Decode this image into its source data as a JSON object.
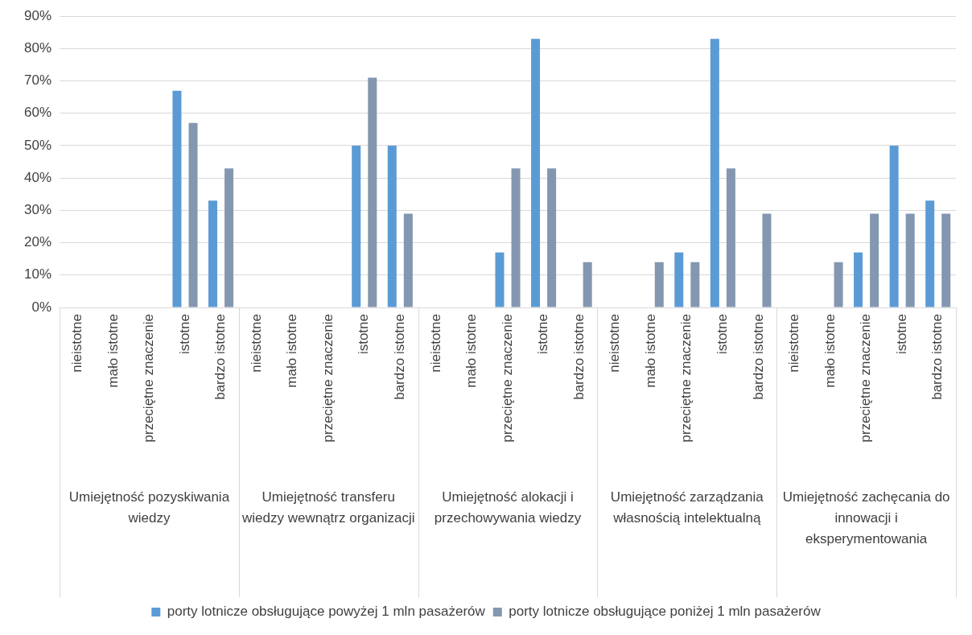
{
  "chart_data": {
    "type": "bar",
    "categories": [
      "nieistotne",
      "mało istotne",
      "przeciętne znaczenie",
      "istotne",
      "bardzo istotne",
      "nieistotne",
      "mało istotne",
      "przeciętne znaczenie",
      "istotne",
      "bardzo istotne",
      "nieistotne",
      "mało istotne",
      "przeciętne znaczenie",
      "istotne",
      "bardzo istotne",
      "nieistotne",
      "mało istotne",
      "przeciętne znaczenie",
      "istotne",
      "bardzo istotne",
      "nieistotne",
      "mało istotne",
      "przeciętne znaczenie",
      "istotne",
      "bardzo istotne"
    ],
    "annotations": [
      "Umiejętność pozyskiwania wiedzy",
      "Umiejętność transferu wiedzy wewnątrz organizacji",
      "Umiejętność alokacji i przechowywania wiedzy",
      "Umiejętność zarządzania własnością intelektualną",
      "Umiejętność zachęcania do innowacji i eksperymentowania"
    ],
    "series": [
      {
        "name": "porty lotnicze obsługujące powyżej 1 mln pasażerów",
        "color": "#5b9bd5",
        "values": [
          0,
          0,
          0,
          67,
          33,
          0,
          0,
          0,
          50,
          50,
          0,
          0,
          17,
          83,
          0,
          0,
          0,
          17,
          83,
          0,
          0,
          0,
          17,
          50,
          33
        ]
      },
      {
        "name": "porty lotnicze obsługujące poniżej 1 mln pasażerów",
        "color": "#8497b0",
        "values": [
          0,
          0,
          0,
          57,
          43,
          0,
          0,
          0,
          71,
          29,
          0,
          0,
          43,
          43,
          14,
          0,
          14,
          14,
          43,
          29,
          0,
          14,
          29,
          29,
          29
        ]
      }
    ],
    "ylim": [
      0,
      90
    ],
    "yticks": [
      {
        "value": 0,
        "label": "0%"
      },
      {
        "value": 10,
        "label": "10%"
      },
      {
        "value": 20,
        "label": "20%"
      },
      {
        "value": 30,
        "label": "30%"
      },
      {
        "value": 40,
        "label": "40%"
      },
      {
        "value": 50,
        "label": "50%"
      },
      {
        "value": 60,
        "label": "60%"
      },
      {
        "value": 70,
        "label": "70%"
      },
      {
        "value": 80,
        "label": "80%"
      },
      {
        "value": 90,
        "label": "90%"
      }
    ],
    "grid": "y",
    "legend": "bottom"
  }
}
